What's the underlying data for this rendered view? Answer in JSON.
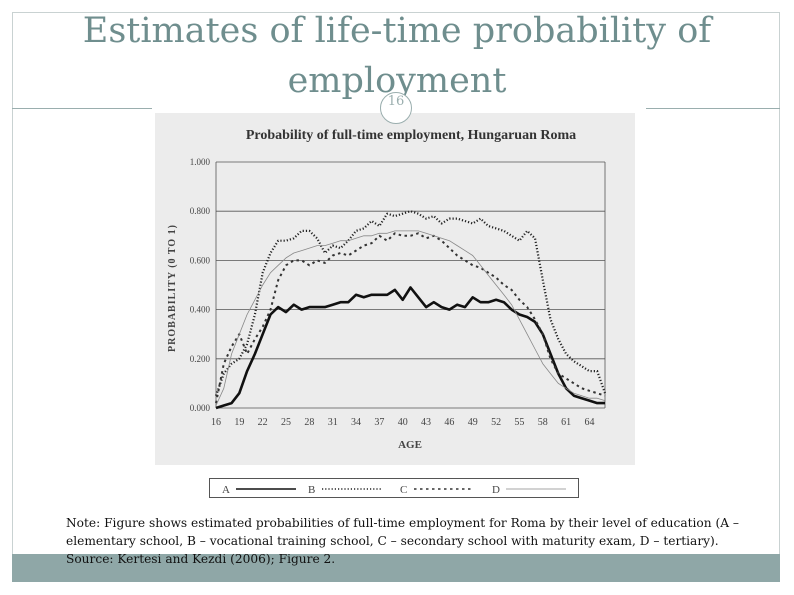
{
  "slide": {
    "title": "Estimates of life-time probability of employment",
    "slide_number": "16",
    "note": "Note: Figure shows estimated probabilities of full-time employment for Roma by their level of education (A – elementary school, B – vocational training school, C – secondary school with maturity exam, D – tertiary).",
    "source": "Source: Kertesi and Kezdi (2006); Figure 2."
  },
  "colors": {
    "title": "#6f8e8e",
    "bottom_bar": "#8fa7a7",
    "chart_bg": "#ececec"
  },
  "chart_data": {
    "type": "line",
    "title": "Probability of full-time employment, Hungaruan Roma",
    "xlabel": "AGE",
    "ylabel": "PROBABILITY (0 TO 1)",
    "xlim": [
      16,
      66
    ],
    "ylim": [
      0,
      1
    ],
    "xticks": [
      "16",
      "19",
      "22",
      "25",
      "28",
      "31",
      "34",
      "37",
      "40",
      "43",
      "46",
      "49",
      "52",
      "55",
      "58",
      "61",
      "64"
    ],
    "yticks": [
      "0.000",
      "0.200",
      "0.400",
      "0.600",
      "0.800",
      "1.000"
    ],
    "grid": true,
    "legend_position": "bottom",
    "series": [
      {
        "name": "A",
        "style": "solid-thick",
        "x": [
          16,
          17,
          18,
          19,
          20,
          21,
          22,
          23,
          24,
          25,
          26,
          27,
          28,
          29,
          30,
          31,
          32,
          33,
          34,
          35,
          36,
          37,
          38,
          39,
          40,
          41,
          42,
          43,
          44,
          45,
          46,
          47,
          48,
          49,
          50,
          51,
          52,
          53,
          54,
          55,
          56,
          57,
          58,
          59,
          60,
          61,
          62,
          63,
          64,
          65,
          66
        ],
        "y": [
          0.0,
          0.01,
          0.02,
          0.06,
          0.15,
          0.22,
          0.3,
          0.38,
          0.41,
          0.39,
          0.42,
          0.4,
          0.41,
          0.41,
          0.41,
          0.42,
          0.43,
          0.43,
          0.46,
          0.45,
          0.46,
          0.46,
          0.46,
          0.48,
          0.44,
          0.49,
          0.45,
          0.41,
          0.43,
          0.41,
          0.4,
          0.42,
          0.41,
          0.45,
          0.43,
          0.43,
          0.44,
          0.43,
          0.4,
          0.38,
          0.37,
          0.35,
          0.3,
          0.22,
          0.14,
          0.08,
          0.05,
          0.04,
          0.03,
          0.02,
          0.02
        ]
      },
      {
        "name": "B",
        "style": "dense-dots",
        "x": [
          16,
          17,
          18,
          19,
          20,
          21,
          22,
          23,
          24,
          25,
          26,
          27,
          28,
          29,
          30,
          31,
          32,
          33,
          34,
          35,
          36,
          37,
          38,
          39,
          40,
          41,
          42,
          43,
          44,
          45,
          46,
          47,
          48,
          49,
          50,
          51,
          52,
          53,
          54,
          55,
          56,
          57,
          58,
          59,
          60,
          61,
          62,
          63,
          64,
          65,
          66
        ],
        "y": [
          0.05,
          0.14,
          0.18,
          0.2,
          0.26,
          0.38,
          0.55,
          0.63,
          0.68,
          0.68,
          0.69,
          0.72,
          0.72,
          0.69,
          0.63,
          0.66,
          0.65,
          0.68,
          0.72,
          0.73,
          0.76,
          0.74,
          0.79,
          0.78,
          0.79,
          0.8,
          0.79,
          0.77,
          0.78,
          0.75,
          0.77,
          0.77,
          0.76,
          0.75,
          0.77,
          0.74,
          0.73,
          0.72,
          0.7,
          0.68,
          0.72,
          0.69,
          0.52,
          0.36,
          0.28,
          0.22,
          0.19,
          0.17,
          0.15,
          0.15,
          0.06
        ]
      },
      {
        "name": "C",
        "style": "dotted",
        "x": [
          16,
          17,
          18,
          19,
          20,
          21,
          22,
          23,
          24,
          25,
          26,
          27,
          28,
          29,
          30,
          31,
          32,
          33,
          34,
          35,
          36,
          37,
          38,
          39,
          40,
          41,
          42,
          43,
          44,
          45,
          46,
          47,
          48,
          49,
          50,
          51,
          52,
          53,
          54,
          55,
          56,
          57,
          58,
          59,
          60,
          61,
          62,
          63,
          64,
          65,
          66
        ],
        "y": [
          0.02,
          0.18,
          0.25,
          0.3,
          0.22,
          0.28,
          0.33,
          0.4,
          0.52,
          0.58,
          0.6,
          0.6,
          0.58,
          0.6,
          0.59,
          0.62,
          0.63,
          0.62,
          0.64,
          0.66,
          0.67,
          0.7,
          0.68,
          0.71,
          0.7,
          0.7,
          0.71,
          0.69,
          0.7,
          0.68,
          0.65,
          0.62,
          0.6,
          0.58,
          0.57,
          0.55,
          0.53,
          0.5,
          0.48,
          0.44,
          0.41,
          0.36,
          0.3,
          0.2,
          0.14,
          0.12,
          0.1,
          0.08,
          0.07,
          0.06,
          0.05
        ]
      },
      {
        "name": "D",
        "style": "thin-solid",
        "x": [
          16,
          17,
          18,
          19,
          20,
          21,
          22,
          23,
          24,
          25,
          26,
          27,
          28,
          29,
          30,
          31,
          32,
          33,
          34,
          35,
          36,
          37,
          38,
          39,
          40,
          41,
          42,
          43,
          44,
          45,
          46,
          47,
          48,
          49,
          50,
          51,
          52,
          53,
          54,
          55,
          56,
          57,
          58,
          59,
          60,
          61,
          62,
          63,
          64,
          65,
          66
        ],
        "y": [
          0.01,
          0.08,
          0.22,
          0.3,
          0.38,
          0.44,
          0.5,
          0.55,
          0.58,
          0.61,
          0.63,
          0.64,
          0.65,
          0.66,
          0.66,
          0.67,
          0.68,
          0.68,
          0.69,
          0.7,
          0.7,
          0.71,
          0.71,
          0.72,
          0.72,
          0.72,
          0.72,
          0.71,
          0.7,
          0.69,
          0.68,
          0.66,
          0.64,
          0.62,
          0.58,
          0.54,
          0.5,
          0.46,
          0.42,
          0.36,
          0.3,
          0.24,
          0.18,
          0.14,
          0.1,
          0.08,
          0.06,
          0.05,
          0.04,
          0.04,
          0.03
        ]
      }
    ]
  }
}
